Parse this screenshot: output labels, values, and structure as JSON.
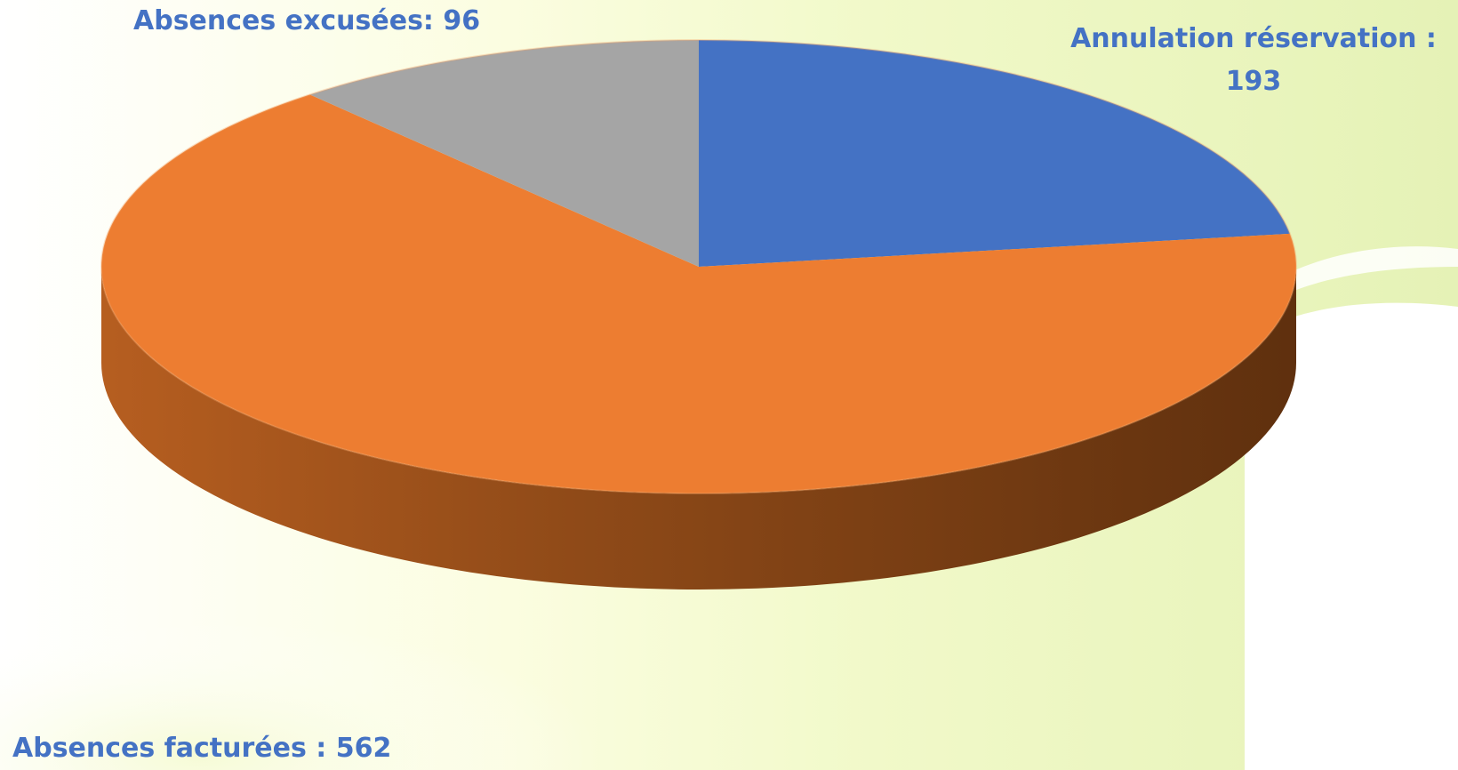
{
  "chart_data": {
    "type": "pie",
    "style": "3d",
    "slices": [
      {
        "name": "Annulation réservation",
        "label": "Annulation réservation :",
        "value": 193,
        "color": "#4472c4"
      },
      {
        "name": "Absences facturées",
        "label": "Absences facturées :",
        "value": 562,
        "color": "#ed7d31"
      },
      {
        "name": "Absences excusées",
        "label": "Absences excusées:",
        "value": 96,
        "color": "#a5a5a5"
      }
    ],
    "label_color": "#4472c4",
    "legend": "none"
  },
  "labels": {
    "annulation_line1": "Annulation réservation :",
    "annulation_line2": "193",
    "excusees": "Absences excusées: 96",
    "facturees": "Absences facturées : 562"
  }
}
